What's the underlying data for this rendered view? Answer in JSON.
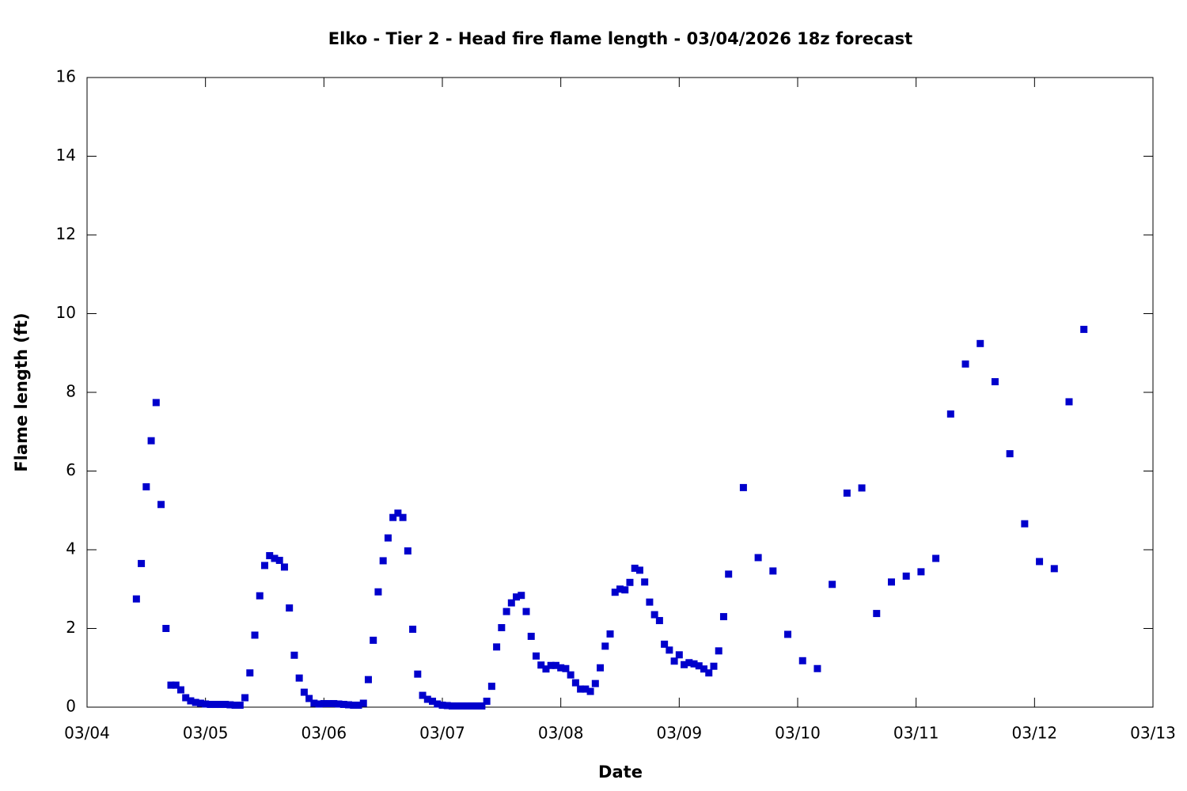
{
  "chart_data": {
    "type": "scatter",
    "title": "Elko - Tier 2 - Head fire flame length - 03/04/2026 18z forecast",
    "x_label": "Date",
    "y_label": "Flame length (ft)",
    "xlim": [
      0,
      216
    ],
    "xticks": [
      {
        "value": 0,
        "label": "03/04"
      },
      {
        "value": 24,
        "label": "03/05"
      },
      {
        "value": 48,
        "label": "03/06"
      },
      {
        "value": 72,
        "label": "03/07"
      },
      {
        "value": 96,
        "label": "03/08"
      },
      {
        "value": 120,
        "label": "03/09"
      },
      {
        "value": 144,
        "label": "03/10"
      },
      {
        "value": 168,
        "label": "03/11"
      },
      {
        "value": 192,
        "label": "03/12"
      },
      {
        "value": 216,
        "label": "03/13"
      }
    ],
    "ylim": [
      0,
      16
    ],
    "yticks": [
      0,
      2,
      4,
      6,
      8,
      10,
      12,
      14,
      16
    ],
    "grid": false,
    "color": "#0000cc",
    "x": [
      10,
      11,
      12,
      13,
      14,
      15,
      16,
      17,
      18,
      19,
      20,
      21,
      22,
      23,
      24,
      25,
      26,
      27,
      28,
      29,
      30,
      31,
      32,
      33,
      34,
      35,
      36,
      37,
      38,
      39,
      40,
      41,
      42,
      43,
      44,
      45,
      46,
      47,
      48,
      49,
      50,
      51,
      52,
      53,
      54,
      55,
      56,
      57,
      58,
      59,
      60,
      61,
      62,
      63,
      64,
      65,
      66,
      67,
      68,
      69,
      70,
      71,
      72,
      73,
      74,
      75,
      76,
      77,
      78,
      79,
      80,
      81,
      82,
      83,
      84,
      85,
      86,
      87,
      88,
      89,
      90,
      91,
      92,
      93,
      94,
      95,
      96,
      97,
      98,
      99,
      100,
      101,
      102,
      103,
      104,
      105,
      106,
      107,
      108,
      109,
      110,
      111,
      112,
      113,
      114,
      115,
      116,
      117,
      118,
      119,
      120,
      121,
      122,
      123,
      124,
      125,
      126,
      127,
      128,
      129,
      130,
      133,
      136,
      139,
      142,
      145,
      148,
      151,
      154,
      157,
      160,
      163,
      166,
      169,
      172,
      175,
      178,
      181,
      184,
      187,
      190,
      193,
      196,
      199,
      202
    ],
    "values": [
      2.75,
      3.65,
      5.6,
      6.77,
      7.74,
      5.15,
      2.0,
      0.56,
      0.56,
      0.44,
      0.24,
      0.16,
      0.12,
      0.1,
      0.08,
      0.07,
      0.07,
      0.07,
      0.07,
      0.06,
      0.05,
      0.05,
      0.24,
      0.87,
      1.83,
      2.83,
      3.6,
      3.85,
      3.78,
      3.73,
      3.56,
      2.52,
      1.32,
      0.74,
      0.38,
      0.22,
      0.1,
      0.08,
      0.09,
      0.09,
      0.09,
      0.08,
      0.07,
      0.06,
      0.05,
      0.05,
      0.1,
      0.7,
      1.7,
      2.93,
      3.72,
      4.3,
      4.82,
      4.93,
      4.82,
      3.97,
      1.98,
      0.84,
      0.3,
      0.2,
      0.15,
      0.08,
      0.05,
      0.04,
      0.03,
      0.03,
      0.03,
      0.03,
      0.03,
      0.03,
      0.03,
      0.15,
      0.53,
      1.53,
      2.02,
      2.43,
      2.65,
      2.8,
      2.84,
      2.43,
      1.8,
      1.3,
      1.07,
      0.97,
      1.06,
      1.06,
      1.0,
      0.98,
      0.82,
      0.62,
      0.46,
      0.46,
      0.4,
      0.6,
      1.0,
      1.55,
      1.86,
      2.92,
      3.0,
      2.98,
      3.17,
      3.53,
      3.48,
      3.18,
      2.67,
      2.35,
      2.2,
      1.6,
      1.45,
      1.17,
      1.33,
      1.08,
      1.13,
      1.1,
      1.05,
      0.97,
      0.87,
      1.04,
      1.43,
      2.3,
      3.38,
      5.58,
      3.8,
      3.46,
      1.85,
      1.18,
      0.98,
      3.12,
      5.44,
      5.57,
      2.38,
      3.18,
      3.33,
      3.44,
      3.78,
      7.45,
      8.72,
      9.24,
      8.27,
      6.44,
      4.66,
      3.7,
      3.52,
      7.76,
      9.6
    ]
  }
}
